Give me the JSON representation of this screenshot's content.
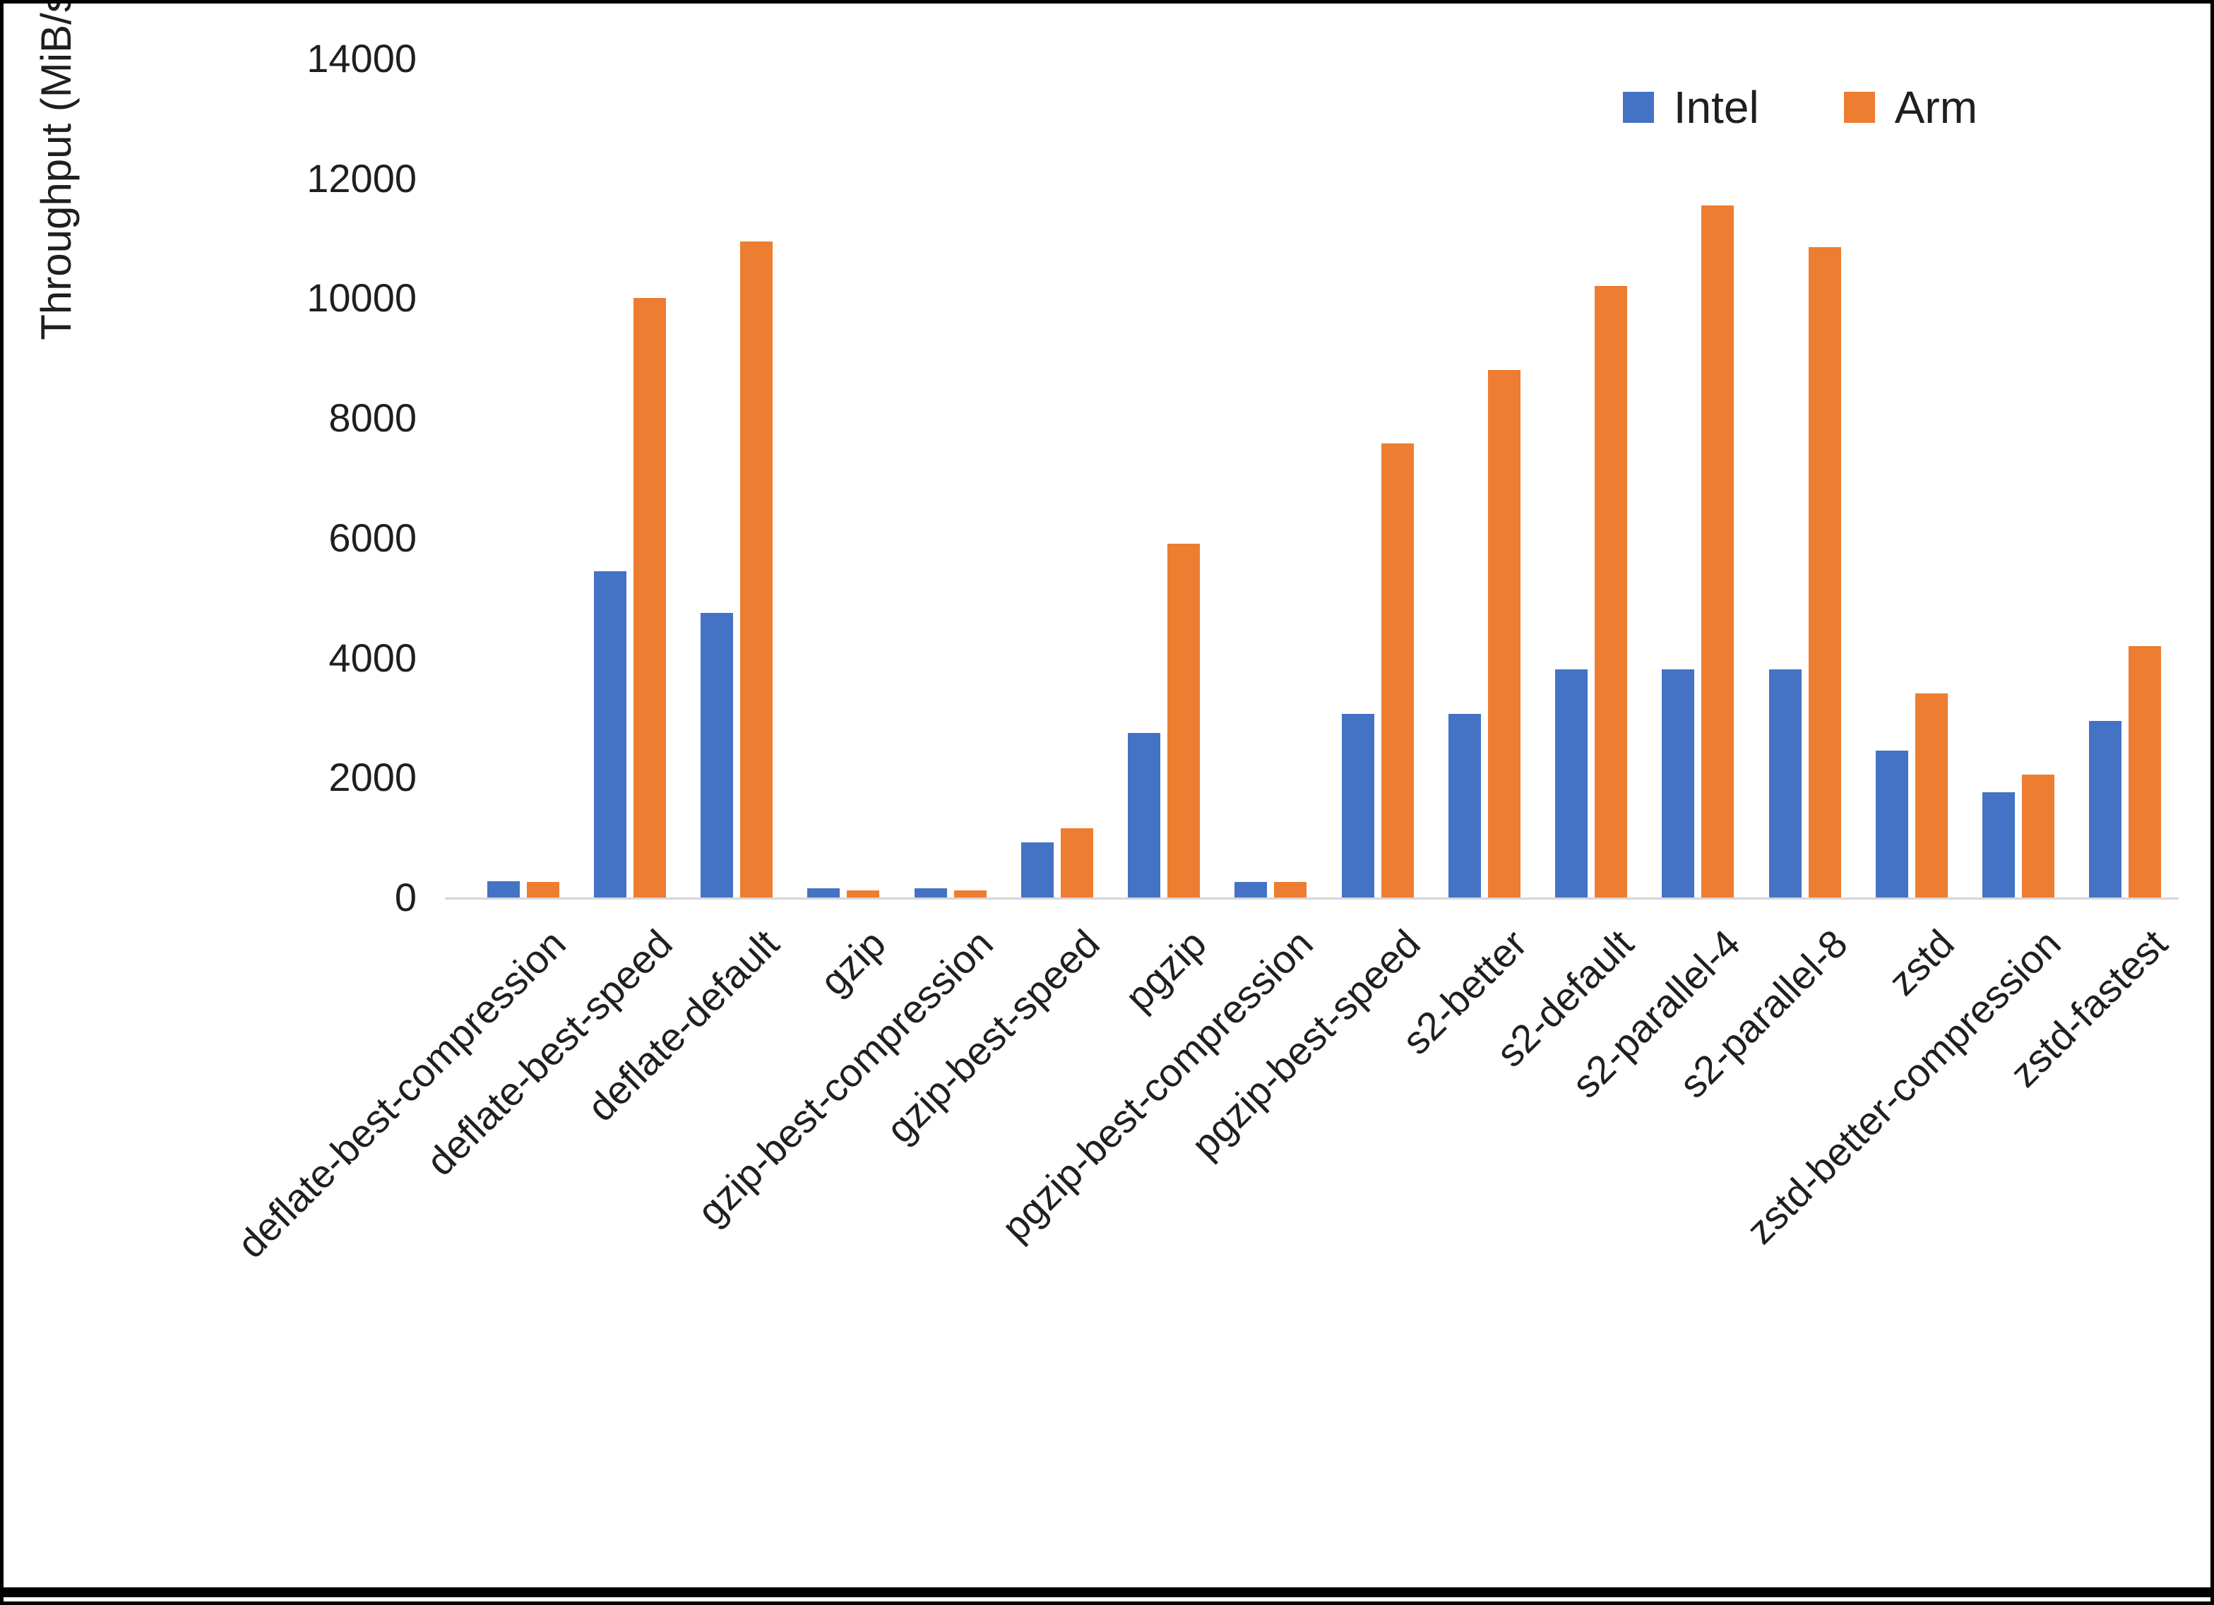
{
  "chart_data": {
    "type": "bar",
    "title": "",
    "xlabel": "",
    "ylabel": "Throughput (MiB/s)",
    "ylim": [
      0,
      14000
    ],
    "ytick_step": 2000,
    "grid": false,
    "legend_position": "top-right",
    "categories": [
      "deflate-best-compression",
      "deflate-best-speed",
      "deflate-default",
      "gzip",
      "gzip-best-compression",
      "gzip-best-speed",
      "pgzip",
      "pgzip-best-compression",
      "pgzip-best-speed",
      "s2-better",
      "s2-default",
      "s2-parallel-4",
      "s2-parallel-8",
      "zstd",
      "zstd-better-compression",
      "zstd-fastest"
    ],
    "series": [
      {
        "name": "Intel",
        "color": "#4472C4",
        "values": [
          270,
          5450,
          4750,
          150,
          150,
          920,
          2750,
          260,
          3060,
          3060,
          3810,
          3810,
          3810,
          2450,
          1760,
          2950
        ]
      },
      {
        "name": "Arm",
        "color": "#ED7D31",
        "values": [
          260,
          10000,
          10950,
          120,
          120,
          1150,
          5900,
          260,
          7580,
          8800,
          10200,
          11550,
          10850,
          3400,
          2050,
          4200
        ]
      }
    ]
  }
}
